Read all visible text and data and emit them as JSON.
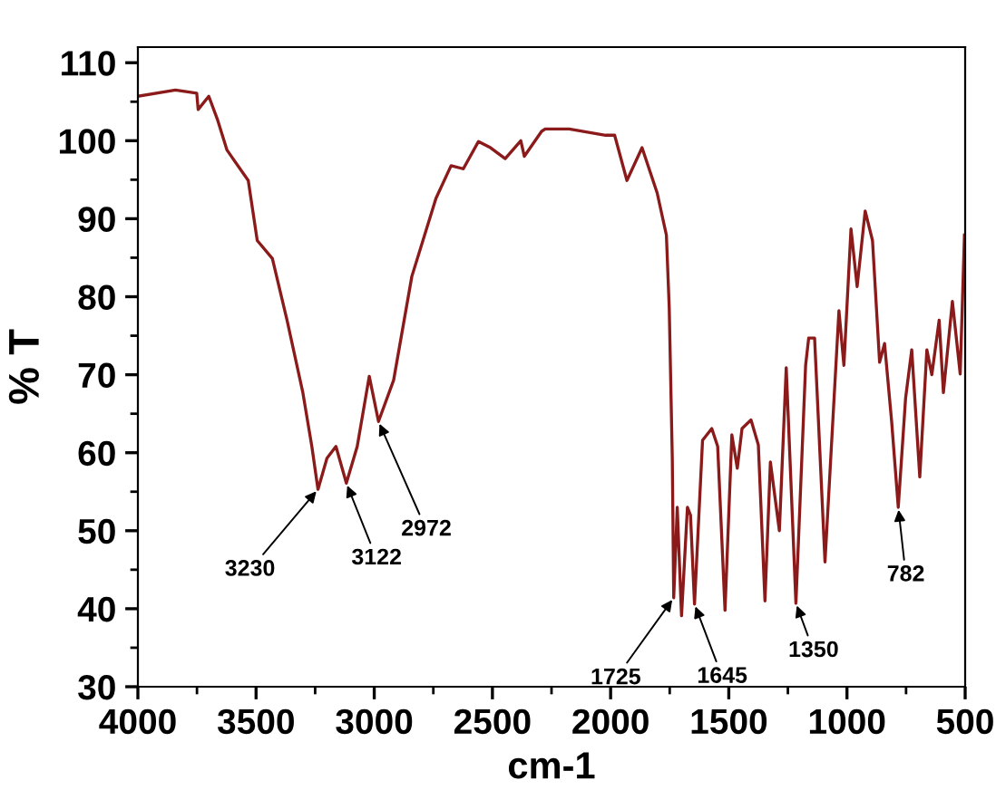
{
  "chart_data": {
    "type": "line",
    "xlabel": "cm-1",
    "ylabel": "% T",
    "xlim": [
      4000,
      500
    ],
    "xticks": [
      4000,
      3500,
      3000,
      2500,
      2000,
      1500,
      1000,
      500
    ],
    "ylim": [
      30,
      112
    ],
    "yticks": [
      30,
      40,
      50,
      60,
      70,
      80,
      90,
      100,
      110
    ],
    "grid": false,
    "marker": "none",
    "line_style": "solid",
    "series": [
      {
        "color": "#8b1a1a",
        "x": [
          4000,
          3841,
          3751,
          3745,
          3700,
          3662,
          3623,
          3533,
          3495,
          3431,
          3369,
          3302,
          3264,
          3238,
          3200,
          3162,
          3118,
          3072,
          3021,
          2982,
          2918,
          2841,
          2739,
          2675,
          2623,
          2559,
          2508,
          2446,
          2380,
          2365,
          2292,
          2277,
          2175,
          2021,
          1983,
          1931,
          1867,
          1803,
          1764,
          1752,
          1739,
          1733,
          1718,
          1700,
          1675,
          1662,
          1645,
          1611,
          1572,
          1547,
          1516,
          1487,
          1464,
          1444,
          1406,
          1375,
          1347,
          1324,
          1286,
          1257,
          1216,
          1175,
          1162,
          1137,
          1093,
          1034,
          1013,
          983,
          957,
          923,
          892,
          862,
          841,
          811,
          783,
          752,
          726,
          692,
          662,
          641,
          610,
          592,
          554,
          521,
          503
        ],
        "values": [
          105.7,
          106.5,
          106.1,
          104,
          105.7,
          102.6,
          98.8,
          94.9,
          87.2,
          84.9,
          77,
          67.7,
          60.8,
          55.3,
          59.3,
          60.8,
          56.1,
          60.8,
          69.8,
          64,
          69.3,
          82.6,
          92.6,
          96.8,
          96.4,
          99.9,
          99.1,
          97.7,
          100,
          98,
          101.2,
          101.5,
          101.5,
          100.7,
          100.7,
          94.9,
          99.1,
          93.3,
          87.9,
          78.6,
          59.3,
          41.4,
          53,
          39.1,
          53,
          52,
          40.6,
          61.6,
          63.1,
          60.8,
          39.8,
          62.3,
          58,
          63.1,
          64.2,
          61,
          41,
          58.8,
          50,
          70.9,
          40.7,
          71.2,
          74.7,
          74.7,
          46,
          78.2,
          71.2,
          88.7,
          81.3,
          91,
          87.2,
          71.6,
          74,
          64,
          53,
          67,
          73.2,
          56.9,
          73.2,
          70,
          77,
          67.7,
          79.4,
          70.1,
          87.9
        ]
      }
    ],
    "annotations": [
      {
        "text": "3230",
        "x": 3238,
        "y": 55.3
      },
      {
        "text": "3122",
        "x": 3118,
        "y": 56.1
      },
      {
        "text": "2972",
        "x": 2982,
        "y": 64
      },
      {
        "text": "1725",
        "x": 1733,
        "y": 41.4
      },
      {
        "text": "1645",
        "x": 1645,
        "y": 40.6
      },
      {
        "text": "1350",
        "x": 1216,
        "y": 40.7
      },
      {
        "text": "782",
        "x": 783,
        "y": 53
      }
    ]
  }
}
